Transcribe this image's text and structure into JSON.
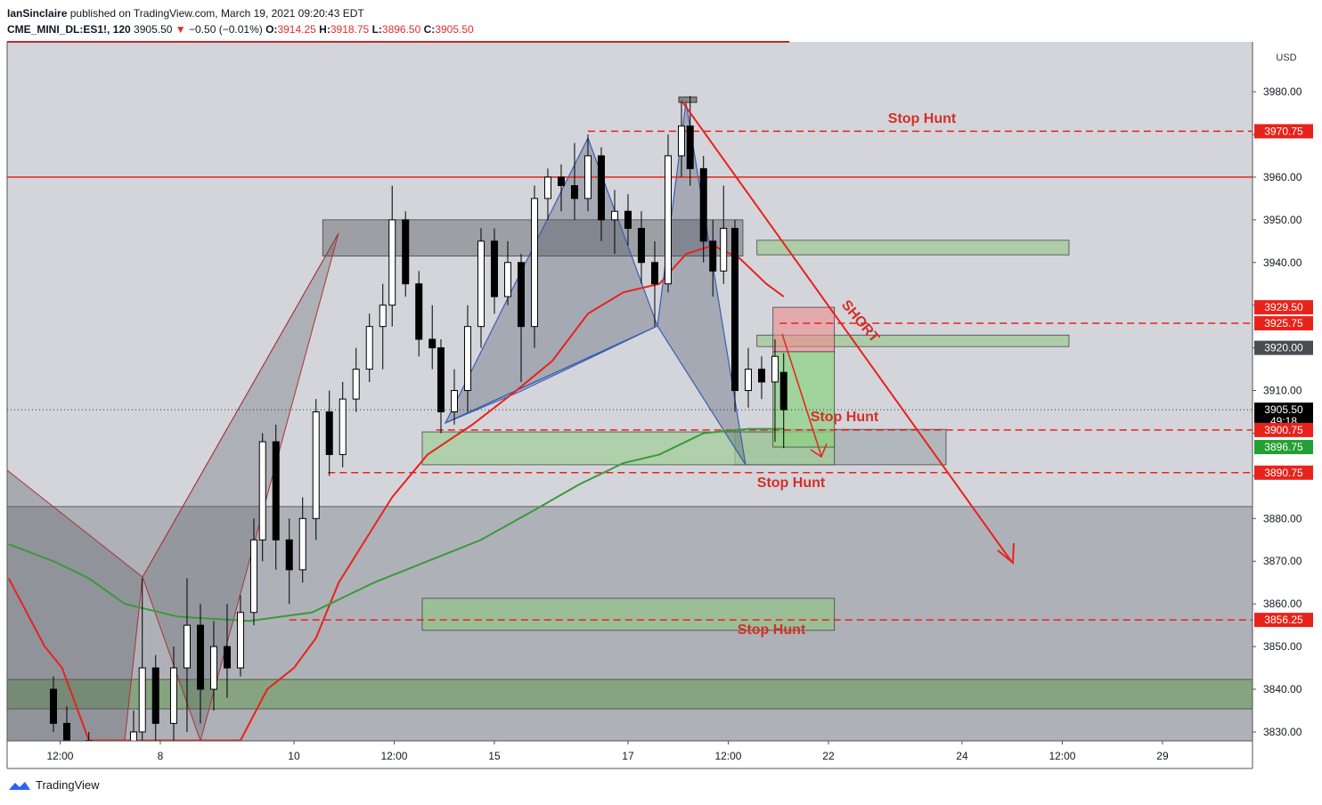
{
  "header": {
    "author": "IanSinclaire",
    "published": "published on TradingView.com, March 19, 2021 09:20:43 EDT",
    "symbol": "CME_MINI_DL:ES1!, 120",
    "last": "3905.50",
    "change": "−0.50 (−0.01%)",
    "o_label": "O:",
    "o": "3914.25",
    "h_label": "H:",
    "h": "3918.75",
    "l_label": "L:",
    "l": "3896.50",
    "c_label": "C:",
    "c": "3905.50"
  },
  "footer": {
    "brand": "TradingView"
  },
  "chart_data": {
    "type": "candlestick",
    "currency": "USD",
    "xlim": [
      -2.293,
      16.347
    ],
    "ylim": [
      3827.9,
      3991.7
    ],
    "xticks": [
      {
        "value": -1.5,
        "label": "12:00"
      },
      {
        "value": 0,
        "label": "8"
      },
      {
        "value": 2,
        "label": "10"
      },
      {
        "value": 3.5,
        "label": "12:00"
      },
      {
        "value": 5,
        "label": "15"
      },
      {
        "value": 7,
        "label": "17"
      },
      {
        "value": 8.5,
        "label": "12:00"
      },
      {
        "value": 10,
        "label": "22"
      },
      {
        "value": 12,
        "label": "24"
      },
      {
        "value": 13.5,
        "label": "12:00"
      },
      {
        "value": 15,
        "label": "29"
      }
    ],
    "yticks": [
      {
        "value": 3830,
        "label": "3830.00"
      },
      {
        "value": 3840,
        "label": "3840.00"
      },
      {
        "value": 3850,
        "label": "3850.00"
      },
      {
        "value": 3860,
        "label": "3860.00"
      },
      {
        "value": 3870,
        "label": "3870.00"
      },
      {
        "value": 3880,
        "label": "3880.00"
      },
      {
        "value": 3890,
        "label": "3890.00"
      },
      {
        "value": 3900,
        "label": "3900.00"
      },
      {
        "value": 3910,
        "label": "3910.00"
      },
      {
        "value": 3920,
        "label": "3920.00"
      },
      {
        "value": 3930,
        "label": "3930.00"
      },
      {
        "value": 3940,
        "label": "3940.00"
      },
      {
        "value": 3950,
        "label": "3950.00"
      },
      {
        "value": 3960,
        "label": "3960.00"
      },
      {
        "value": 3970,
        "label": "3970.00"
      },
      {
        "value": 3980,
        "label": "3980.00"
      }
    ],
    "candles": {
      "x": [
        -1.6,
        -1.4,
        -1.07,
        -0.4,
        -0.27,
        -0.07,
        0.2,
        0.4,
        0.6,
        0.8,
        1.0,
        1.2,
        1.4,
        1.53,
        1.73,
        1.93,
        2.13,
        2.33,
        2.53,
        2.73,
        2.93,
        3.13,
        3.33,
        3.47,
        3.67,
        3.87,
        4.07,
        4.2,
        4.4,
        4.6,
        4.8,
        5.0,
        5.2,
        5.4,
        5.6,
        5.8,
        6.0,
        6.2,
        6.4,
        6.6,
        6.8,
        7.0,
        7.2,
        7.4,
        7.6,
        7.8,
        7.93,
        8.13,
        8.27,
        8.43,
        8.6,
        8.8,
        9.0,
        9.2,
        9.33
      ],
      "open": [
        3840,
        3832,
        3828,
        3825,
        3830,
        3845,
        3832,
        3845,
        3855,
        3840,
        3850,
        3845,
        3858,
        3875,
        3898,
        3875,
        3868,
        3880,
        3905,
        3895,
        3908,
        3915,
        3925,
        3930,
        3950,
        3935,
        3922,
        3920,
        3905,
        3910,
        3925,
        3945,
        3932,
        3940,
        3925,
        3955,
        3960,
        3958,
        3955,
        3965,
        3950,
        3952,
        3948,
        3940,
        3935,
        3965,
        3972,
        3962,
        3945,
        3938,
        3948,
        3910,
        3915,
        3912,
        3914.25
      ],
      "high": [
        3843,
        3836,
        3830,
        3835,
        3866,
        3848,
        3850,
        3866,
        3860,
        3856,
        3860,
        3862,
        3880,
        3900,
        3902,
        3880,
        3885,
        3908,
        3910,
        3912,
        3920,
        3928,
        3935,
        3958,
        3952,
        3938,
        3930,
        3922,
        3915,
        3930,
        3948,
        3948,
        3945,
        3942,
        3958,
        3962,
        3963,
        3968,
        3970,
        3967,
        3957,
        3956,
        3952,
        3945,
        3970,
        3978,
        3979,
        3965,
        3950,
        3958,
        3950,
        3920,
        3918,
        3922,
        3918.75
      ],
      "low": [
        3830,
        3825,
        3820,
        3818,
        3828,
        3826,
        3825,
        3830,
        3832,
        3835,
        3838,
        3843,
        3855,
        3870,
        3868,
        3860,
        3865,
        3875,
        3890,
        3892,
        3905,
        3912,
        3915,
        3925,
        3932,
        3918,
        3915,
        3900,
        3902,
        3905,
        3920,
        3928,
        3930,
        3912,
        3920,
        3950,
        3952,
        3950,
        3952,
        3945,
        3942,
        3944,
        3935,
        3925,
        3933,
        3960,
        3958,
        3940,
        3932,
        3935,
        3905,
        3906,
        3908,
        3898,
        3896.5
      ],
      "close": [
        3832,
        3828,
        3822,
        3830,
        3845,
        3832,
        3845,
        3855,
        3840,
        3850,
        3845,
        3858,
        3875,
        3898,
        3875,
        3868,
        3880,
        3905,
        3895,
        3908,
        3915,
        3925,
        3930,
        3950,
        3935,
        3922,
        3920,
        3905,
        3910,
        3925,
        3945,
        3932,
        3940,
        3925,
        3955,
        3960,
        3958,
        3955,
        3965,
        3950,
        3952,
        3948,
        3940,
        3935,
        3965,
        3972,
        3962,
        3945,
        3938,
        3948,
        3910,
        3915,
        3912,
        3918,
        3905.5
      ]
    },
    "series": [
      {
        "color": "#e8231b",
        "x": [
          -2.27,
          -1.73,
          -1.47,
          -1.07,
          1.2,
          1.6,
          2.0,
          2.33,
          2.67,
          3.07,
          3.47,
          4.0,
          4.67,
          5.33,
          5.87,
          6.4,
          6.93,
          7.47,
          7.87,
          8.27,
          8.67,
          9.07,
          9.33
        ],
        "values": [
          3866,
          3850,
          3845,
          3828,
          3828,
          3840,
          3845,
          3852,
          3865,
          3875,
          3885,
          3895,
          3902,
          3910,
          3917,
          3928,
          3933,
          3935,
          3942,
          3944,
          3941,
          3935,
          3932
        ]
      },
      {
        "color": "#3a9a3a",
        "x": [
          -2.27,
          -1.6,
          -1.07,
          -0.53,
          0.27,
          1.33,
          2.27,
          3.2,
          4.0,
          4.8,
          5.6,
          6.27,
          6.93,
          7.47,
          8.13,
          8.8,
          9.33
        ],
        "values": [
          3874,
          3870,
          3866,
          3860,
          3857,
          3856,
          3858,
          3865,
          3870,
          3875,
          3882,
          3888,
          3893,
          3895,
          3900,
          3901,
          3901
        ]
      }
    ],
    "zones": [
      {
        "color": "rgba(90,93,100,0.45)",
        "x": [
          2.43,
          8.72
        ],
        "y": [
          3941.5,
          3950
        ]
      },
      {
        "color": "rgba(160,200,150,0.75)",
        "x": [
          8.93,
          13.6
        ],
        "y": [
          3941.8,
          3945.2
        ]
      },
      {
        "color": "rgba(160,200,150,0.75)",
        "x": [
          8.93,
          13.6
        ],
        "y": [
          3920.3,
          3923
        ]
      },
      {
        "color": "rgba(150,160,160,0.55)",
        "x": [
          8.6,
          11.76
        ],
        "y": [
          3892.6,
          3900.9
        ]
      },
      {
        "color": "rgba(160,205,150,0.7)",
        "x": [
          3.92,
          10.09
        ],
        "y": [
          3892.6,
          3900.3
        ]
      },
      {
        "color": "rgba(110,113,120,0.35)",
        "x": [
          -2.293,
          16.347
        ],
        "y": [
          3827.9,
          3882.8
        ]
      },
      {
        "color": "rgba(150,195,140,0.75)",
        "x": [
          3.92,
          10.09
        ],
        "y": [
          3853.8,
          3861.3
        ]
      },
      {
        "color": "rgba(120,160,110,0.75)",
        "x": [
          -2.293,
          16.347
        ],
        "y": [
          3835.4,
          3842.3
        ]
      },
      {
        "color": "rgba(240,140,140,0.6)",
        "x": [
          9.17,
          10.09
        ],
        "y": [
          3919.1,
          3929.5
        ]
      },
      {
        "color": "rgba(140,210,130,0.7)",
        "x": [
          9.17,
          10.09
        ],
        "y": [
          3896.75,
          3919.1
        ]
      }
    ],
    "levels": [
      {
        "value": 3970.75,
        "from": 6.4,
        "style": "dashed",
        "color": "#e8231b"
      },
      {
        "value": 3925.75,
        "from": 9.27,
        "style": "dashed",
        "color": "#e8231b"
      },
      {
        "value": 3900.75,
        "from": 4.13,
        "style": "dashed",
        "color": "#e8231b"
      },
      {
        "value": 3890.75,
        "from": 2.51,
        "style": "dashed",
        "color": "#e8231b"
      },
      {
        "value": 3856.25,
        "from": 1.93,
        "style": "dashed",
        "color": "#e8231b"
      },
      {
        "value": 3960,
        "from": -2.293,
        "style": "solid",
        "color": "#e8231b"
      },
      {
        "value": 3905.5,
        "from": -2.293,
        "style": "dotted",
        "color": "#333"
      }
    ],
    "price_labels": [
      {
        "value": 3970.75,
        "label": "3970.75",
        "color": "#e8231b"
      },
      {
        "value": 3929.5,
        "label": "3929.50",
        "color": "#e8231b"
      },
      {
        "value": 3925.75,
        "label": "3925.75",
        "color": "#e8231b"
      },
      {
        "value": 3920,
        "label": "3920.00",
        "color": "#4a4c52"
      },
      {
        "value": 3905.5,
        "label": "3905.50",
        "color": "#000000",
        "timer": "49:18"
      },
      {
        "value": 3900.75,
        "label": "3900.75",
        "color": "#e8231b"
      },
      {
        "value": 3896.75,
        "label": "3896.75",
        "color": "#22a033"
      },
      {
        "value": 3890.75,
        "label": "3890.75",
        "color": "#e8231b"
      },
      {
        "value": 3856.25,
        "label": "3856.25",
        "color": "#e8231b"
      }
    ],
    "annotations": [
      "Stop Hunt",
      "Stop Hunt",
      "Stop Hunt",
      "Stop Hunt",
      "SHORT"
    ]
  }
}
